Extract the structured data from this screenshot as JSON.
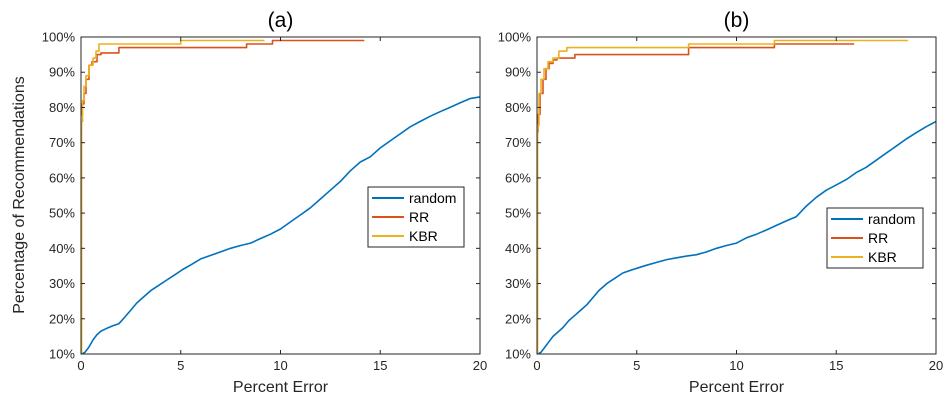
{
  "figure": {
    "ylabel": "Percentage of Recommendations"
  },
  "chart_data": [
    {
      "type": "line",
      "title": "(a)",
      "xlabel": "Percent Error",
      "ylabel": "Percentage of Recommendations",
      "xlim": [
        0,
        20
      ],
      "ylim": [
        10,
        100
      ],
      "x_ticks": [
        "0",
        "5",
        "10",
        "15",
        "20"
      ],
      "y_ticks": [
        "10%",
        "20%",
        "30%",
        "40%",
        "50%",
        "60%",
        "70%",
        "80%",
        "90%",
        "100%"
      ],
      "grid": false,
      "legend_position": "center-right",
      "series": [
        {
          "name": "random",
          "color": "#0072BD",
          "x": [
            0.05,
            0.2,
            0.4,
            0.6,
            0.8,
            1.0,
            1.3,
            1.6,
            1.9,
            2.2,
            2.5,
            2.8,
            3.1,
            3.5,
            3.9,
            4.3,
            4.7,
            5.1,
            5.5,
            6.0,
            6.5,
            7.0,
            7.5,
            8.0,
            8.5,
            9.0,
            9.5,
            10.0,
            10.5,
            11.0,
            11.5,
            12.0,
            12.5,
            13.0,
            13.5,
            14.0,
            14.5,
            15.0,
            15.5,
            16.0,
            16.5,
            17.0,
            17.5,
            18.0,
            18.5,
            19.0,
            19.5,
            20.0
          ],
          "y": [
            10,
            10.5,
            12,
            14,
            15.5,
            16.5,
            17.3,
            18.0,
            18.6,
            20.5,
            22.5,
            24.5,
            26.0,
            28.0,
            29.5,
            31.0,
            32.5,
            34.0,
            35.3,
            37.0,
            38.0,
            39.0,
            40.0,
            40.8,
            41.5,
            42.8,
            44.0,
            45.5,
            47.5,
            49.5,
            51.5,
            54.0,
            56.5,
            59.0,
            62.0,
            64.5,
            66.0,
            68.5,
            70.5,
            72.5,
            74.5,
            76.0,
            77.5,
            78.8,
            80.0,
            81.3,
            82.5,
            83.0
          ]
        },
        {
          "name": "RR",
          "color": "#D95319",
          "x": [
            0,
            0.05,
            0.15,
            0.25,
            0.4,
            0.55,
            0.8,
            1.0,
            1.6,
            1.9,
            4.7,
            5.0,
            8.0,
            8.3,
            9.3,
            9.6,
            14.2
          ],
          "y": [
            78,
            81,
            84,
            88,
            92,
            93,
            95,
            95.5,
            95.5,
            97,
            97,
            97,
            97,
            98,
            98,
            99,
            99
          ]
        },
        {
          "name": "KBR",
          "color": "#EDB120",
          "x": [
            0,
            0.03,
            0.08,
            0.15,
            0.25,
            0.4,
            0.6,
            0.75,
            0.9,
            4.7,
            5.0,
            9.2
          ],
          "y": [
            10,
            76,
            82,
            86,
            89,
            92,
            94,
            96,
            98,
            98,
            99,
            99
          ]
        }
      ]
    },
    {
      "type": "line",
      "title": "(b)",
      "xlabel": "Percent Error",
      "ylabel": "",
      "xlim": [
        0,
        20
      ],
      "ylim": [
        10,
        100
      ],
      "x_ticks": [
        "0",
        "5",
        "10",
        "15",
        "20"
      ],
      "y_ticks": [
        "10%",
        "20%",
        "30%",
        "40%",
        "50%",
        "60%",
        "70%",
        "80%",
        "90%",
        "100%"
      ],
      "grid": false,
      "legend_position": "center-right",
      "series": [
        {
          "name": "random",
          "color": "#0072BD",
          "x": [
            0.05,
            0.2,
            0.4,
            0.6,
            0.8,
            1.0,
            1.3,
            1.6,
            1.9,
            2.2,
            2.5,
            2.8,
            3.1,
            3.5,
            3.9,
            4.3,
            4.7,
            5.1,
            5.5,
            6.0,
            6.5,
            7.0,
            7.5,
            8.0,
            8.5,
            9.0,
            9.5,
            10.0,
            10.5,
            11.0,
            11.5,
            12.0,
            12.5,
            13.0,
            13.5,
            14.0,
            14.5,
            15.0,
            15.5,
            16.0,
            16.5,
            17.0,
            17.5,
            18.0,
            18.5,
            19.0,
            19.5,
            20.0
          ],
          "y": [
            10,
            10.5,
            12,
            13.5,
            15.0,
            16.0,
            17.5,
            19.5,
            21.0,
            22.5,
            24.0,
            26.0,
            28.0,
            30.0,
            31.5,
            33.0,
            33.8,
            34.5,
            35.2,
            36.0,
            36.8,
            37.3,
            37.8,
            38.2,
            39.0,
            40.0,
            40.8,
            41.5,
            43.0,
            44.0,
            45.2,
            46.5,
            47.8,
            49.0,
            52.0,
            54.5,
            56.5,
            58.0,
            59.5,
            61.5,
            63.0,
            65.0,
            67.0,
            69.0,
            71.0,
            72.8,
            74.5,
            76.0
          ]
        },
        {
          "name": "RR",
          "color": "#D95319",
          "x": [
            0,
            0.05,
            0.15,
            0.3,
            0.45,
            0.6,
            0.8,
            1.0,
            1.5,
            1.9,
            7.4,
            7.6,
            11.6,
            11.9,
            15.9
          ],
          "y": [
            73,
            78,
            84,
            88,
            91,
            92.5,
            93.5,
            94,
            94,
            95,
            95,
            97,
            97,
            98,
            98
          ]
        },
        {
          "name": "KBR",
          "color": "#EDB120",
          "x": [
            0,
            0.03,
            0.1,
            0.2,
            0.35,
            0.55,
            0.8,
            1.1,
            1.5,
            7.4,
            7.6,
            11.6,
            11.9,
            18.6
          ],
          "y": [
            10,
            75,
            84,
            88,
            91,
            93,
            94,
            96,
            97,
            97,
            98,
            98,
            99,
            99
          ]
        }
      ]
    }
  ]
}
